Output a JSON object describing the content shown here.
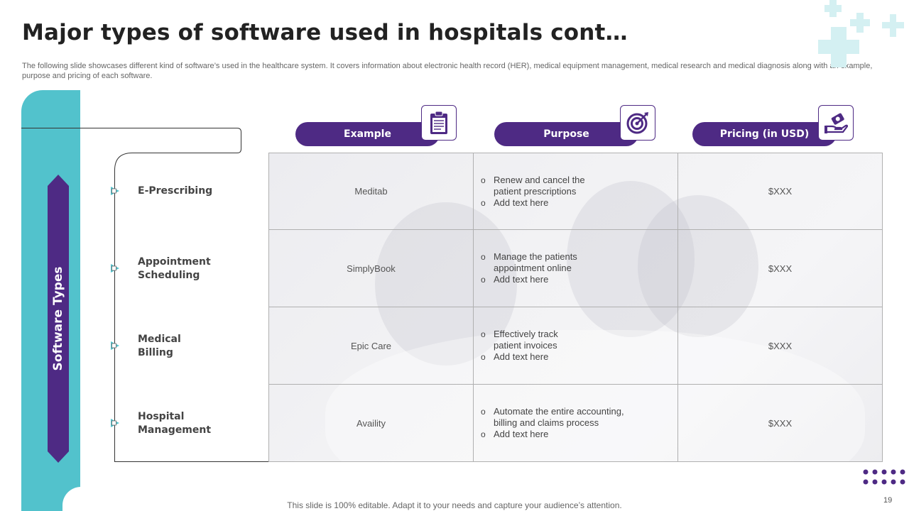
{
  "slide": {
    "title": "Major types of software used in hospitals cont…",
    "subtitle": "The following slide showcases different kind of software’s used in the healthcare system. It covers information about electronic health record (HER), medical equipment management, medical research and medical diagnosis along with an example, purpose and pricing of each software.",
    "side_label": "Software Types",
    "footer": "This slide is 100% editable. Adapt it to your needs and capture your audience’s attention.",
    "page_number": "19"
  },
  "columns": [
    {
      "label": "Example",
      "icon": "clipboard-icon"
    },
    {
      "label": "Purpose",
      "icon": "target-icon"
    },
    {
      "label": "Pricing (in USD)",
      "icon": "money-hand-icon"
    }
  ],
  "rows": [
    {
      "type": "E-Prescribing",
      "example": "Meditab",
      "purpose": [
        "Renew and cancel the patient prescriptions",
        "Add text here"
      ],
      "pricing": "$XXX"
    },
    {
      "type": "Appointment Scheduling",
      "example": "SimplyBook",
      "purpose": [
        "Manage the patients appointment online",
        "Add text here"
      ],
      "pricing": "$XXX"
    },
    {
      "type": "Medical Billing",
      "example": "Epic Care",
      "purpose": [
        "Effectively track patient invoices",
        "Add text here"
      ],
      "pricing": "$XXX"
    },
    {
      "type": "Hospital Management",
      "example": "Availity",
      "purpose": [
        "Automate the entire accounting, billing and claims process",
        "Add text here"
      ],
      "pricing": "$XXX"
    }
  ],
  "colors": {
    "purple": "#4e2a84",
    "teal": "#52c2cc",
    "light_teal": "#c8ecef"
  }
}
